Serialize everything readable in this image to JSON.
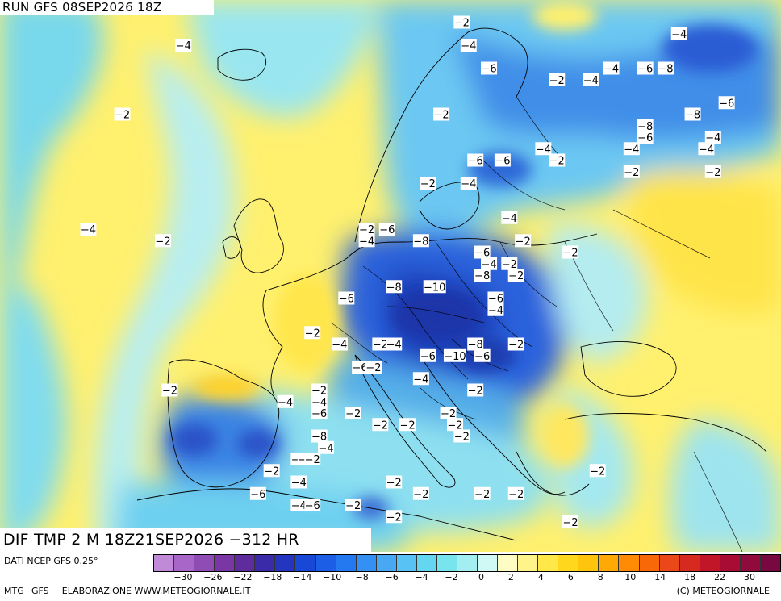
{
  "map": {
    "run_title": "RUN GFS 08SEP2026 18Z",
    "field_title": "DIF TMP 2 M 18Z21SEP2026 −312 HR",
    "region": "Europe",
    "iso_labels": [
      {
        "text": "−2",
        "lon": -32,
        "lat": 62
      },
      {
        "text": "−4",
        "lon": -37,
        "lat": 52
      },
      {
        "text": "−2",
        "lon": -26,
        "lat": 51
      },
      {
        "text": "−2",
        "lon": -25,
        "lat": 38
      },
      {
        "text": "−4",
        "lon": -23,
        "lat": 68
      },
      {
        "text": "−2",
        "lon": 18,
        "lat": 70
      },
      {
        "text": "−4",
        "lon": 19,
        "lat": 68
      },
      {
        "text": "−6",
        "lon": 22,
        "lat": 66
      },
      {
        "text": "−2",
        "lon": 15,
        "lat": 62
      },
      {
        "text": "−2",
        "lon": 13,
        "lat": 56
      },
      {
        "text": "−4",
        "lon": 19,
        "lat": 56
      },
      {
        "text": "−6",
        "lon": 20,
        "lat": 58
      },
      {
        "text": "−6",
        "lon": 24,
        "lat": 58
      },
      {
        "text": "−4",
        "lon": 30,
        "lat": 59
      },
      {
        "text": "−2",
        "lon": 32,
        "lat": 58
      },
      {
        "text": "−2",
        "lon": 32,
        "lat": 65
      },
      {
        "text": "−4",
        "lon": 37,
        "lat": 65
      },
      {
        "text": "−4",
        "lon": 40,
        "lat": 66
      },
      {
        "text": "−6",
        "lon": 45,
        "lat": 66
      },
      {
        "text": "−8",
        "lon": 48,
        "lat": 66
      },
      {
        "text": "−4",
        "lon": 50,
        "lat": 69
      },
      {
        "text": "−8",
        "lon": 52,
        "lat": 62
      },
      {
        "text": "−6",
        "lon": 57,
        "lat": 63
      },
      {
        "text": "−4",
        "lon": 55,
        "lat": 60
      },
      {
        "text": "−4",
        "lon": 54,
        "lat": 59
      },
      {
        "text": "−2",
        "lon": 55,
        "lat": 57
      },
      {
        "text": "−8",
        "lon": 45,
        "lat": 61
      },
      {
        "text": "−6",
        "lon": 45,
        "lat": 60
      },
      {
        "text": "−4",
        "lon": 43,
        "lat": 59
      },
      {
        "text": "−2",
        "lon": 43,
        "lat": 57
      },
      {
        "text": "−4",
        "lon": 25,
        "lat": 53
      },
      {
        "text": "−2",
        "lon": 27,
        "lat": 51
      },
      {
        "text": "−2",
        "lon": 34,
        "lat": 50
      },
      {
        "text": "−2",
        "lon": 4,
        "lat": 52
      },
      {
        "text": "−6",
        "lon": 7,
        "lat": 52
      },
      {
        "text": "−4",
        "lon": 4,
        "lat": 51
      },
      {
        "text": "−8",
        "lon": 12,
        "lat": 51
      },
      {
        "text": "−6",
        "lon": 21,
        "lat": 50
      },
      {
        "text": "−4",
        "lon": 22,
        "lat": 49
      },
      {
        "text": "−2",
        "lon": 25,
        "lat": 49
      },
      {
        "text": "−2",
        "lon": 26,
        "lat": 48
      },
      {
        "text": "−8",
        "lon": 21,
        "lat": 48
      },
      {
        "text": "−8",
        "lon": 8,
        "lat": 47
      },
      {
        "text": "−10",
        "lon": 14,
        "lat": 47
      },
      {
        "text": "−6",
        "lon": 1,
        "lat": 46
      },
      {
        "text": "−6",
        "lon": 23,
        "lat": 46
      },
      {
        "text": "−4",
        "lon": 23,
        "lat": 45
      },
      {
        "text": "−2",
        "lon": -4,
        "lat": 43
      },
      {
        "text": "−4",
        "lon": 0,
        "lat": 42
      },
      {
        "text": "−2",
        "lon": 6,
        "lat": 42
      },
      {
        "text": "−4",
        "lon": 8,
        "lat": 42
      },
      {
        "text": "−8",
        "lon": 20,
        "lat": 42
      },
      {
        "text": "−6",
        "lon": 13,
        "lat": 41
      },
      {
        "text": "−10",
        "lon": 17,
        "lat": 41
      },
      {
        "text": "−6",
        "lon": 21,
        "lat": 41
      },
      {
        "text": "−2",
        "lon": 26,
        "lat": 42
      },
      {
        "text": "−6",
        "lon": 3,
        "lat": 40
      },
      {
        "text": "−2",
        "lon": 5,
        "lat": 40
      },
      {
        "text": "−4",
        "lon": 12,
        "lat": 39
      },
      {
        "text": "−2",
        "lon": 20,
        "lat": 38
      },
      {
        "text": "−4",
        "lon": -8,
        "lat": 37
      },
      {
        "text": "−2",
        "lon": -3,
        "lat": 38
      },
      {
        "text": "−4",
        "lon": -3,
        "lat": 37
      },
      {
        "text": "−6",
        "lon": -3,
        "lat": 36
      },
      {
        "text": "−2",
        "lon": 2,
        "lat": 36
      },
      {
        "text": "−2",
        "lon": 6,
        "lat": 35
      },
      {
        "text": "−2",
        "lon": 10,
        "lat": 35
      },
      {
        "text": "−2",
        "lon": 17,
        "lat": 35
      },
      {
        "text": "−2",
        "lon": 16,
        "lat": 36
      },
      {
        "text": "−2",
        "lon": 18,
        "lat": 34
      },
      {
        "text": "−8",
        "lon": -3,
        "lat": 34
      },
      {
        "text": "−4",
        "lon": -2,
        "lat": 33
      },
      {
        "text": "−2",
        "lon": -6,
        "lat": 32
      },
      {
        "text": "−6",
        "lon": -5,
        "lat": 32
      },
      {
        "text": "−2",
        "lon": -4,
        "lat": 32
      },
      {
        "text": "−2",
        "lon": -10,
        "lat": 31
      },
      {
        "text": "−4",
        "lon": -6,
        "lat": 30
      },
      {
        "text": "−6",
        "lon": -12,
        "lat": 29
      },
      {
        "text": "−4",
        "lon": -6,
        "lat": 28
      },
      {
        "text": "−6",
        "lon": -4,
        "lat": 28
      },
      {
        "text": "−2",
        "lon": 2,
        "lat": 28
      },
      {
        "text": "−2",
        "lon": 8,
        "lat": 30
      },
      {
        "text": "−2",
        "lon": 12,
        "lat": 29
      },
      {
        "text": "−2",
        "lon": 8,
        "lat": 27
      },
      {
        "text": "−2",
        "lon": 21,
        "lat": 29
      },
      {
        "text": "−2",
        "lon": 26,
        "lat": 29
      },
      {
        "text": "−2",
        "lon": 38,
        "lat": 31
      },
      {
        "text": "−2",
        "lon": 34,
        "lat": 26
      }
    ]
  },
  "legend": {
    "source_label": "DATI NCEP GFS 0.25°",
    "colors": [
      "#c08ad8",
      "#a866c8",
      "#8f4cb4",
      "#7a36a4",
      "#5e2c9c",
      "#3a2ca8",
      "#2436c0",
      "#1a48d6",
      "#1c5ee6",
      "#2478f0",
      "#3590f4",
      "#48a8f4",
      "#58c2f4",
      "#64d6f0",
      "#78e4ee",
      "#a2eef0",
      "#d0f8f4",
      "#fffcc4",
      "#fff48a",
      "#ffe848",
      "#ffd81e",
      "#ffc40c",
      "#ffaa04",
      "#ff8a04",
      "#f86808",
      "#ea4818",
      "#d62a20",
      "#c01628",
      "#a80c34",
      "#900a3c",
      "#780840"
    ],
    "ticks": [
      "−30",
      "−26",
      "−22",
      "−18",
      "−14",
      "−10",
      "−8",
      "−6",
      "−4",
      "−2",
      "0",
      "2",
      "4",
      "6",
      "8",
      "10",
      "14",
      "18",
      "22",
      "30"
    ]
  },
  "footer": {
    "credit_left": "MTG−GFS − ELABORAZIONE WWW.METEOGIORNALE.IT",
    "credit_right": "(C) METEOGIORNALE"
  }
}
